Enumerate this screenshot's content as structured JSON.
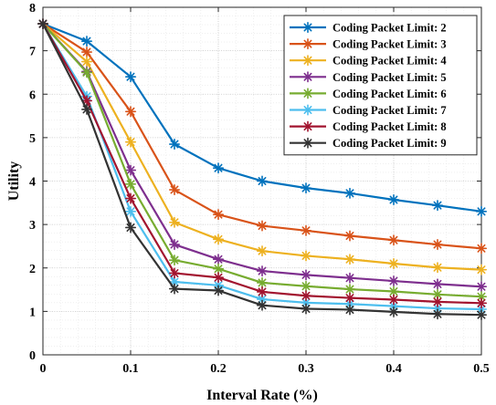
{
  "chart_data": {
    "type": "line",
    "title": "",
    "xlabel": "Interval Rate (%)",
    "ylabel": "Utility",
    "xlim": [
      0,
      0.5
    ],
    "ylim": [
      0,
      8
    ],
    "x_ticks": [
      0,
      0.1,
      0.2,
      0.3,
      0.4,
      0.5
    ],
    "x_tick_labels": [
      "0",
      "0.1",
      "0.2",
      "0.3",
      "0.4",
      "0.5"
    ],
    "y_ticks": [
      0,
      1,
      2,
      3,
      4,
      5,
      6,
      7,
      8
    ],
    "y_tick_labels": [
      "0",
      "1",
      "2",
      "3",
      "4",
      "5",
      "6",
      "7",
      "8"
    ],
    "grid": true,
    "legend_position": "top-right",
    "marker": "asterisk",
    "x": [
      0,
      0.05,
      0.1,
      0.15,
      0.2,
      0.25,
      0.3,
      0.35,
      0.4,
      0.45,
      0.5
    ],
    "series": [
      {
        "name": "Coding Packet Limit: 2",
        "color": "#0072BD",
        "values": [
          7.62,
          7.22,
          6.4,
          4.85,
          4.3,
          4.0,
          3.84,
          3.72,
          3.57,
          3.44,
          3.3
        ]
      },
      {
        "name": "Coding Packet Limit: 3",
        "color": "#D95319",
        "values": [
          7.62,
          6.97,
          5.6,
          3.8,
          3.23,
          2.97,
          2.86,
          2.74,
          2.64,
          2.54,
          2.45
        ]
      },
      {
        "name": "Coding Packet Limit: 4",
        "color": "#EDB120",
        "values": [
          7.62,
          6.75,
          4.9,
          3.05,
          2.66,
          2.39,
          2.28,
          2.2,
          2.1,
          2.01,
          1.96
        ]
      },
      {
        "name": "Coding Packet Limit: 5",
        "color": "#7E2F8E",
        "values": [
          7.62,
          6.52,
          4.25,
          2.54,
          2.2,
          1.93,
          1.84,
          1.77,
          1.7,
          1.63,
          1.57
        ]
      },
      {
        "name": "Coding Packet Limit: 6",
        "color": "#77AC30",
        "values": [
          7.62,
          6.5,
          3.93,
          2.18,
          1.98,
          1.66,
          1.58,
          1.51,
          1.46,
          1.39,
          1.34
        ]
      },
      {
        "name": "Coding Packet Limit: 7",
        "color": "#4DBEEE",
        "values": [
          7.62,
          5.95,
          3.3,
          1.68,
          1.6,
          1.28,
          1.2,
          1.17,
          1.12,
          1.07,
          1.05
        ]
      },
      {
        "name": "Coding Packet Limit: 8",
        "color": "#A2142F",
        "values": [
          7.62,
          5.85,
          3.6,
          1.88,
          1.78,
          1.45,
          1.36,
          1.31,
          1.27,
          1.22,
          1.19
        ]
      },
      {
        "name": "Coding Packet Limit: 9",
        "color": "#333333",
        "values": [
          7.62,
          5.65,
          2.93,
          1.52,
          1.48,
          1.14,
          1.06,
          1.04,
          0.99,
          0.94,
          0.92
        ]
      }
    ]
  }
}
